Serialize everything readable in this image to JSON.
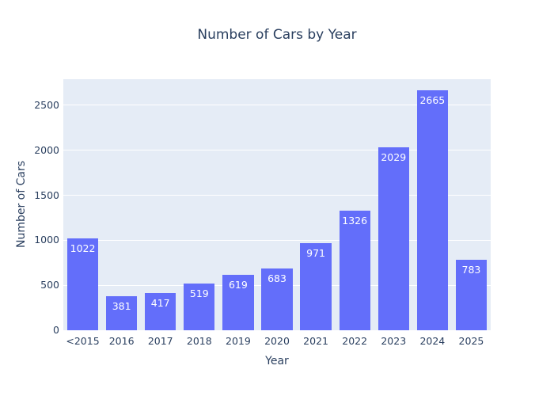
{
  "colors": {
    "bar": "#636efa",
    "plot_background": "#e5ecf6",
    "paper_background": "#ffffff",
    "gridline": "#ffffff",
    "text": "#2a3f5f",
    "bar_label_text": "#ffffff"
  },
  "chart_data": {
    "type": "bar",
    "title": "Number of Cars by Year",
    "xlabel": "Year",
    "ylabel": "Number of Cars",
    "categories": [
      "<2015",
      "2016",
      "2017",
      "2018",
      "2019",
      "2020",
      "2021",
      "2022",
      "2023",
      "2024",
      "2025"
    ],
    "values": [
      1022,
      381,
      417,
      519,
      619,
      683,
      971,
      1326,
      2029,
      2665,
      783
    ],
    "bar_labels": [
      "1022",
      "381",
      "417",
      "519",
      "619",
      "683",
      "971",
      "1326",
      "2029",
      "2665",
      "783"
    ],
    "yticks": [
      0,
      500,
      1000,
      1500,
      2000,
      2500
    ],
    "ytick_labels": [
      "0",
      "500",
      "1000",
      "1500",
      "2000",
      "2500"
    ],
    "ylim": [
      0,
      2790
    ],
    "grid": true,
    "legend": false,
    "bar_width_fraction": 0.8
  }
}
